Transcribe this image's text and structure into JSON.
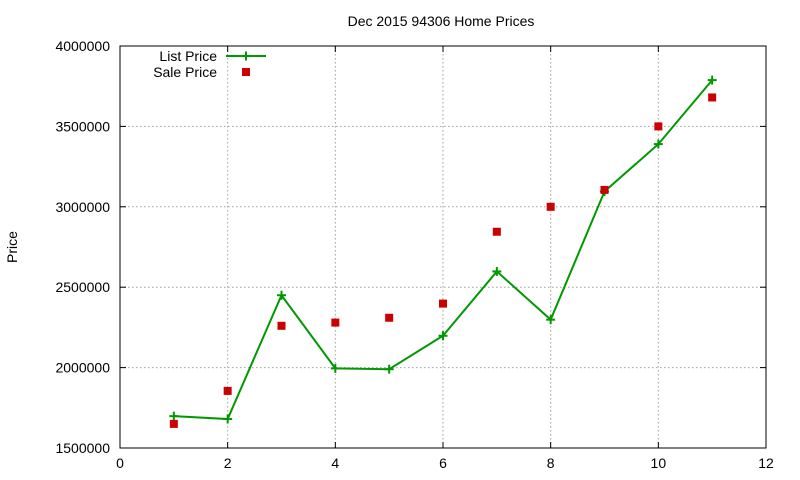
{
  "chart_data": {
    "type": "line",
    "title": "Dec 2015 94306 Home Prices",
    "xlabel": "",
    "ylabel": "Price",
    "xlim": [
      0,
      12
    ],
    "ylim": [
      1500000,
      4000000
    ],
    "xticks": [
      0,
      2,
      4,
      6,
      8,
      10,
      12
    ],
    "yticks": [
      1500000,
      2000000,
      2500000,
      3000000,
      3500000,
      4000000
    ],
    "grid": true,
    "legend_position": "top-left",
    "series": [
      {
        "name": "List Price",
        "style": "line-with-plus-markers",
        "color": "#009900",
        "x": [
          1,
          2,
          3,
          4,
          5,
          6,
          7,
          8,
          9,
          10,
          11
        ],
        "y": [
          1698000,
          1680000,
          2450000,
          1995000,
          1990000,
          2198000,
          2598000,
          2298000,
          3095000,
          3390000,
          3788000
        ]
      },
      {
        "name": "Sale Price",
        "style": "square-markers",
        "color": "#cc0000",
        "x": [
          1,
          2,
          3,
          4,
          5,
          6,
          7,
          8,
          9,
          10,
          11
        ],
        "y": [
          1650000,
          1855000,
          2260000,
          2280000,
          2310000,
          2398000,
          2845000,
          3000000,
          3105000,
          3500000,
          3680000
        ]
      }
    ]
  }
}
